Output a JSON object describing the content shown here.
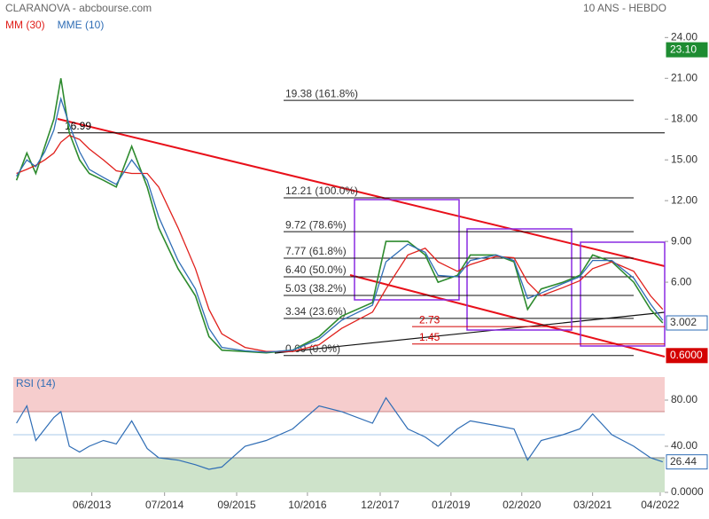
{
  "chart_data": {
    "type": "line",
    "title": "CLARANOVA - abcbourse.com",
    "subtitle": "10 ANS - HEBDO",
    "x": [
      2012.25,
      2012.41,
      2012.55,
      2012.69,
      2012.83,
      2012.94,
      2013.07,
      2013.23,
      2013.38,
      2013.6,
      2013.8,
      2014.04,
      2014.28,
      2014.46,
      2014.76,
      2015.03,
      2015.24,
      2015.44,
      2015.8,
      2016.13,
      2016.54,
      2016.95,
      2017.3,
      2017.78,
      2017.99,
      2018.33,
      2018.6,
      2018.8,
      2019.1,
      2019.3,
      2019.7,
      2019.98,
      2020.19,
      2020.4,
      2020.74,
      2021.0,
      2021.2,
      2021.5,
      2021.84,
      2022.1,
      2022.29
    ],
    "series": [
      {
        "color": "#2e8b2e",
        "values": [
          13.5,
          15.5,
          14,
          16,
          18,
          21,
          17,
          15,
          14,
          13.5,
          13,
          16,
          13,
          10,
          7,
          5,
          2,
          1,
          0.9,
          0.8,
          1,
          2,
          3.5,
          4.5,
          9,
          9,
          8,
          6,
          6.5,
          8,
          8,
          7.5,
          4,
          5.5,
          6,
          6.5,
          8,
          7.5,
          6,
          4,
          3
        ]
      },
      {
        "name": "MM (30)",
        "color": "#e0201c",
        "values": [
          14,
          14.3,
          14.6,
          15,
          15.5,
          16.3,
          16.8,
          16.5,
          15.8,
          15,
          14.2,
          14,
          14,
          13,
          10,
          7,
          4,
          2.2,
          1.2,
          0.9,
          0.9,
          1.4,
          2.6,
          3.8,
          5.5,
          8,
          8.5,
          7.5,
          6.8,
          7.3,
          7.9,
          7.8,
          6,
          5,
          5.6,
          6.1,
          7,
          7.5,
          6.8,
          5,
          4
        ]
      },
      {
        "name": "MME (10)",
        "color": "#2f6db5",
        "values": [
          13.8,
          15,
          14.5,
          15.6,
          17.2,
          19.5,
          17.6,
          15.6,
          14.3,
          13.7,
          13.2,
          15,
          13.5,
          10.8,
          7.6,
          5.5,
          2.6,
          1.2,
          0.95,
          0.85,
          1,
          1.8,
          3.2,
          4.3,
          7.5,
          8.8,
          8.2,
          6.5,
          6.4,
          7.6,
          8,
          7.6,
          4.8,
          5.2,
          5.9,
          6.4,
          7.6,
          7.6,
          6.3,
          4.4,
          3.2
        ]
      }
    ],
    "xlim": [
      2012.2,
      2022.32
    ],
    "xticks": [
      {
        "value": 2013.42,
        "label": "06/2013"
      },
      {
        "value": 2014.55,
        "label": "07/2014"
      },
      {
        "value": 2015.67,
        "label": "09/2015"
      },
      {
        "value": 2016.77,
        "label": "10/2016"
      },
      {
        "value": 2017.9,
        "label": "12/2017"
      },
      {
        "value": 2019.0,
        "label": "01/2019"
      },
      {
        "value": 2020.1,
        "label": "02/2020"
      },
      {
        "value": 2021.2,
        "label": "03/2021"
      },
      {
        "value": 2022.25,
        "label": "04/2022"
      }
    ],
    "ylim": [
      0,
      25
    ],
    "yticks": [
      {
        "value": 24,
        "label": "24.00"
      },
      {
        "value": 21,
        "label": "21.00"
      },
      {
        "value": 18,
        "label": "18.00"
      },
      {
        "value": 15,
        "label": "15.00"
      },
      {
        "value": 12,
        "label": "12.00"
      },
      {
        "value": 9,
        "label": "9.00"
      },
      {
        "value": 6,
        "label": "6.00"
      }
    ],
    "price_markers": [
      {
        "value": 23.1,
        "label": "23.10",
        "color": "#1e8c32"
      },
      {
        "value": 3.002,
        "color": "#2f6db5"
      },
      {
        "value": 0.6,
        "label": "0.6000",
        "color": "#d40000"
      }
    ],
    "fib_levels": [
      {
        "value": 19.38,
        "label": "19.38  (161.8%)"
      },
      {
        "value": 12.21,
        "label": "12.21  (100.0%)"
      },
      {
        "value": 9.72,
        "label": "9.72  (78.6%)"
      },
      {
        "value": 7.77,
        "label": "7.77  (61.8%)"
      },
      {
        "value": 6.4,
        "label": "6.40  (50.0%)"
      },
      {
        "value": 5.03,
        "label": "5.03  (38.2%)"
      },
      {
        "value": 3.34,
        "label": "3.34  (23.6%)"
      },
      {
        "value": 0.6,
        "label": "0.60  (0.0%)"
      }
    ],
    "levels": [
      {
        "value": 16.99,
        "label": "16.99",
        "color": "#000000"
      },
      {
        "value": 2.73,
        "label": "2.73",
        "color": "#d40000"
      },
      {
        "value": 1.45,
        "label": "1.45",
        "color": "#d40000"
      }
    ],
    "rsi": {
      "name": "RSI (14)",
      "color": "#2f6db5",
      "values": [
        60,
        75,
        45,
        55,
        65,
        70,
        40,
        35,
        40,
        45,
        42,
        62,
        38,
        30,
        28,
        24,
        20,
        22,
        40,
        45,
        55,
        75,
        70,
        60,
        82,
        55,
        48,
        40,
        55,
        62,
        58,
        55,
        28,
        45,
        50,
        55,
        68,
        50,
        40,
        30,
        26.44
      ],
      "ylim": [
        0,
        100
      ],
      "yticks": [
        {
          "value": 80,
          "label": "80.00"
        },
        {
          "value": 40,
          "label": "40.00"
        },
        {
          "value": 0,
          "label": "0.0000"
        }
      ],
      "overbought": 70,
      "oversold": 30,
      "midline": 50
    }
  }
}
